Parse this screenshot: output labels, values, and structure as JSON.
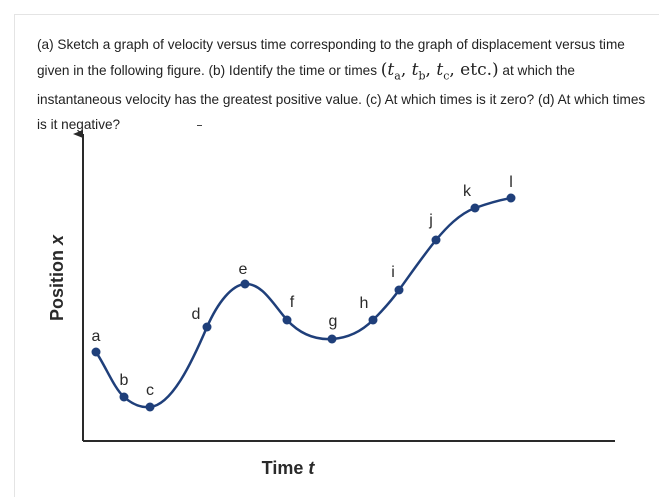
{
  "question": {
    "part1": "(a) Sketch a graph of velocity versus time corresponding to the graph of displacement versus time given in the following figure. (b) Identify the time or times ",
    "math": {
      "open": "(",
      "t": "t",
      "subs": [
        "a",
        "b",
        "c"
      ],
      "sep": ", ",
      "etc": "etc.",
      "close": ")"
    },
    "part2": " at which the instantaneous velocity has the greatest positive value. (c) At which times is it zero? (d) At which times is it negative?"
  },
  "figure": {
    "y_axis_label": "Position ",
    "y_axis_var": "x",
    "x_axis_label": "Time ",
    "x_axis_var": "t",
    "curve_color": "#1f3f7a",
    "points": [
      {
        "label": "a"
      },
      {
        "label": "b"
      },
      {
        "label": "c"
      },
      {
        "label": "d"
      },
      {
        "label": "e"
      },
      {
        "label": "f"
      },
      {
        "label": "g"
      },
      {
        "label": "h"
      },
      {
        "label": "i"
      },
      {
        "label": "j"
      },
      {
        "label": "k"
      },
      {
        "label": "l"
      }
    ]
  }
}
